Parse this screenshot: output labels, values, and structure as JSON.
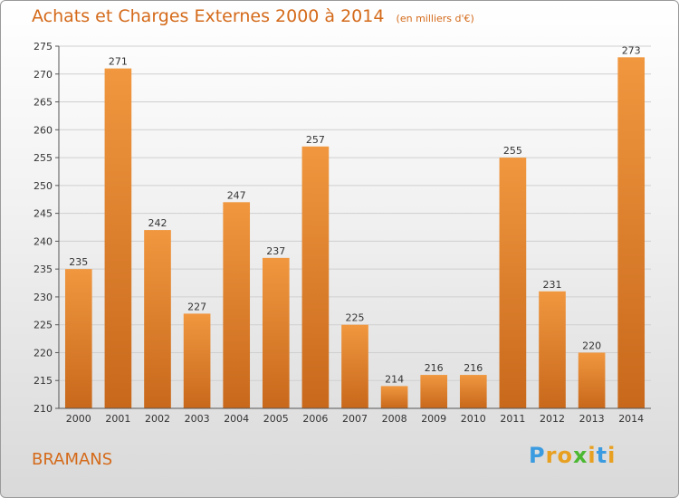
{
  "chart_data": {
    "type": "bar",
    "title": "Achats et Charges Externes 2000 à 2014",
    "subtitle": "(en milliers d'€)",
    "categories": [
      "2000",
      "2001",
      "2002",
      "2003",
      "2004",
      "2005",
      "2006",
      "2007",
      "2008",
      "2009",
      "2010",
      "2011",
      "2012",
      "2013",
      "2014"
    ],
    "values": [
      235,
      271,
      242,
      227,
      247,
      237,
      257,
      225,
      214,
      216,
      216,
      255,
      231,
      220,
      273
    ],
    "ylim": [
      210,
      275
    ],
    "yticks": [
      210,
      215,
      220,
      225,
      230,
      235,
      240,
      245,
      250,
      255,
      260,
      265,
      270,
      275
    ],
    "grid": true,
    "legend": "none",
    "bar_color": "#f0973f",
    "bar_color_dark": "#c8681b"
  },
  "commune": "BRAMANS",
  "logo": {
    "letters": [
      "P",
      "r",
      "o",
      "x",
      "i",
      "t",
      "i"
    ],
    "colors": [
      "#3a9be0",
      "#e8a020",
      "#e8a020",
      "#4cb832",
      "#e8a020",
      "#3a9be0",
      "#e8a020"
    ]
  },
  "colors": {
    "title": "#d46a1a",
    "grid": "#cfcfcf",
    "axis": "#555555"
  }
}
